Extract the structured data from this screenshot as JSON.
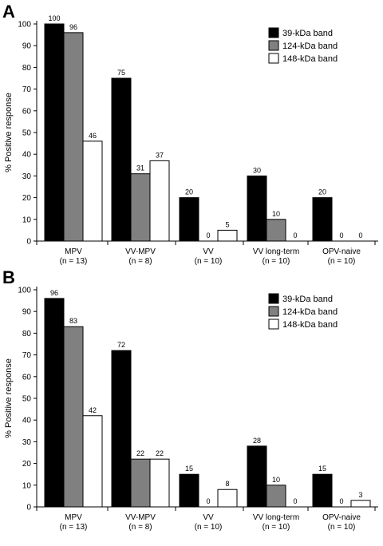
{
  "chart_data": [
    {
      "panel": "A",
      "type": "bar",
      "ylabel": "% Positive response",
      "ylim": [
        0,
        100
      ],
      "yticks": [
        0,
        10,
        20,
        30,
        40,
        50,
        60,
        70,
        80,
        90,
        100
      ],
      "categories": [
        {
          "name": "MPV",
          "n": "(n = 13)"
        },
        {
          "name": "VV-MPV",
          "n": "(n = 8)"
        },
        {
          "name": "VV",
          "n": "(n = 10)"
        },
        {
          "name": "VV long-term",
          "n": "(n = 10)"
        },
        {
          "name": "OPV-naive",
          "n": "(n = 10)"
        }
      ],
      "series": [
        {
          "name": "39-kDa band",
          "color": "#000000",
          "values": [
            100,
            75,
            20,
            30,
            20
          ]
        },
        {
          "name": "124-kDa band",
          "color": "#808080",
          "values": [
            96,
            31,
            0,
            10,
            0
          ]
        },
        {
          "name": "148-kDa band",
          "color": "#ffffff",
          "values": [
            46,
            37,
            5,
            0,
            0
          ]
        }
      ],
      "legend_position": "top-right"
    },
    {
      "panel": "B",
      "type": "bar",
      "ylabel": "% Positive response",
      "ylim": [
        0,
        100
      ],
      "yticks": [
        0,
        10,
        20,
        30,
        40,
        50,
        60,
        70,
        80,
        90,
        100
      ],
      "categories": [
        {
          "name": "MPV",
          "n": "(n = 13)"
        },
        {
          "name": "VV-MPV",
          "n": "(n = 8)"
        },
        {
          "name": "VV",
          "n": "(n = 10)"
        },
        {
          "name": "VV long-term",
          "n": "(n = 10)"
        },
        {
          "name": "OPV-naive",
          "n": "(n = 10)"
        }
      ],
      "series": [
        {
          "name": "39-kDa band",
          "color": "#000000",
          "values": [
            96,
            72,
            15,
            28,
            15
          ]
        },
        {
          "name": "124-kDa band",
          "color": "#808080",
          "values": [
            83,
            22,
            0,
            10,
            0
          ]
        },
        {
          "name": "148-kDa band",
          "color": "#ffffff",
          "values": [
            42,
            22,
            8,
            0,
            3
          ]
        }
      ],
      "legend_position": "top-right"
    }
  ]
}
